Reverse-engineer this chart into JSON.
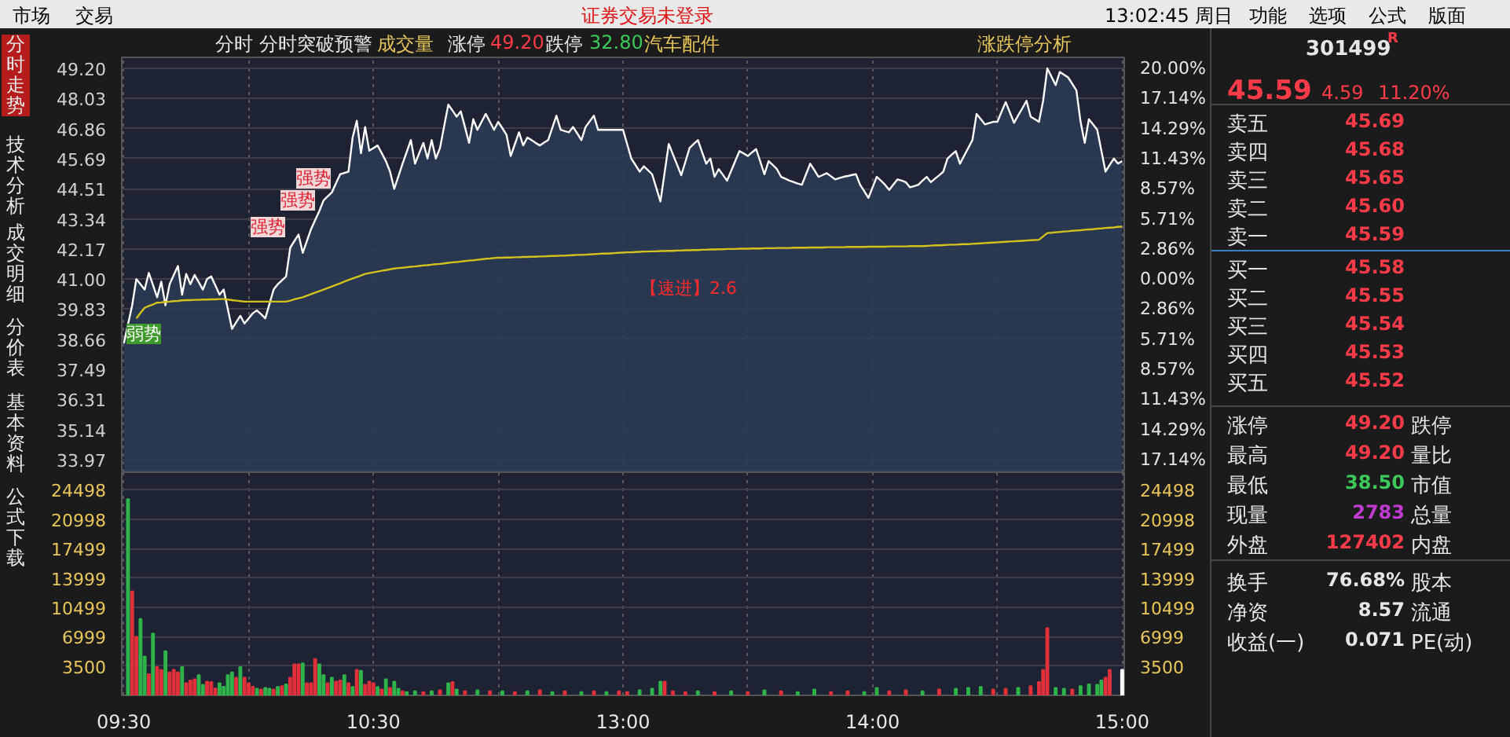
{
  "chart_data": [
    {
      "type": "line",
      "tick_labels": "y",
      "grid": true,
      "marker": "none",
      "line_style": "solid",
      "annotations": [
        "分时",
        "分时突破预警",
        "成交量",
        "涨停",
        "49.20",
        "跌停",
        "32.80",
        "汽车配件",
        "涨跌停分析",
        "弱势",
        "强势",
        "强势",
        "强势",
        "【速进】2.6",
        "市场",
        "交易",
        "证券交易未登录",
        "13:02:45 周日",
        "功能",
        "选项",
        "公式",
        "版面",
        "分时走势",
        "技术分析",
        "成交明细",
        "分价表",
        "基本资料",
        "公式下载",
        "301499",
        "R",
        "45.59",
        "4.59",
        "11.20%",
        "卖五",
        "45.69",
        "卖四",
        "45.68",
        "卖三",
        "45.65",
        "卖二",
        "45.60",
        "卖一",
        "45.59",
        "买一",
        "45.58",
        "买二",
        "45.55",
        "买三",
        "45.54",
        "买四",
        "45.53",
        "买五",
        "45.52",
        "涨停",
        "49.20",
        "跌停",
        "最高",
        "49.20",
        "量比",
        "最低",
        "38.50",
        "市值",
        "现量",
        "2783",
        "总量",
        "外盘",
        "127402",
        "内盘",
        "换手",
        "76.68%",
        "股本",
        "净资",
        "8.57",
        "流通",
        "收益(一)",
        "0.071",
        "PE(动)"
      ],
      "categories": [
        null,
        null,
        null,
        null,
        null,
        null,
        null,
        null,
        null,
        null,
        null,
        null,
        null,
        null,
        null,
        null,
        null,
        null,
        null,
        null,
        null,
        null,
        null,
        null,
        null,
        null,
        null,
        null,
        null,
        null,
        null,
        null,
        null,
        null,
        null,
        null,
        null,
        null,
        null,
        null,
        null,
        null,
        null,
        null,
        null,
        null,
        null,
        null,
        null,
        null,
        null,
        null,
        null,
        null,
        null,
        null,
        null,
        null,
        null,
        null,
        null,
        null,
        null,
        null,
        null,
        null,
        null,
        null,
        null,
        null,
        null,
        null,
        null,
        null,
        null,
        null,
        null,
        null,
        null,
        null,
        null,
        null,
        null,
        null,
        null,
        null,
        null,
        null,
        null,
        null,
        null,
        null,
        null,
        null,
        null,
        null,
        null,
        null,
        null,
        null,
        null,
        null,
        null,
        null,
        null,
        null,
        null,
        null,
        null,
        null,
        null,
        null,
        null,
        null,
        null,
        null,
        null,
        null,
        null,
        null,
        null,
        null,
        null,
        null,
        null,
        null,
        null,
        null,
        null,
        null,
        null,
        null,
        null,
        null,
        null,
        null,
        null,
        null,
        null,
        null,
        null,
        null,
        null,
        null,
        null,
        null,
        null,
        null,
        null,
        null,
        null,
        null,
        null,
        null,
        null,
        null,
        null,
        null,
        null,
        null,
        null,
        null,
        null,
        null,
        null,
        null,
        null,
        null,
        null,
        null,
        null,
        null,
        null,
        null,
        null,
        null,
        null,
        null,
        null,
        null,
        null,
        null,
        null,
        null,
        null,
        null,
        null,
        null,
        null,
        null,
        null,
        null,
        null,
        null,
        null,
        null,
        null,
        null,
        null,
        null,
        null,
        null,
        null,
        null,
        null,
        null,
        null,
        null,
        null,
        null,
        null,
        null,
        null,
        null,
        null,
        null,
        null,
        null,
        null,
        null,
        null,
        null,
        null,
        null,
        null,
        null,
        null,
        null,
        null,
        null,
        null,
        null,
        null,
        null,
        null,
        null,
        null,
        null,
        null,
        null,
        null
      ],
      "ylim": [
        33.48,
        49.63
      ],
      "yticks": [
        {
          "value": 49.2,
          "label": "49.20"
        },
        48.03,
        46.86,
        45.69,
        44.51,
        43.34,
        42.17,
        {
          "value": 41.0,
          "label": "41.00"
        },
        39.83,
        38.66,
        37.49,
        36.31,
        35.14,
        33.97
      ],
      "y2lim": [
        -18.34,
        21.05
      ],
      "y2ticks": [
        {
          "value": 20,
          "label": "20.00%"
        },
        {
          "value": 17.14,
          "label": "17.14%"
        },
        {
          "value": 14.29,
          "label": "14.29%"
        },
        {
          "value": 11.43,
          "label": "11.43%"
        },
        {
          "value": 8.57,
          "label": "8.57%"
        },
        {
          "value": 5.71,
          "label": "5.71%"
        },
        {
          "value": 2.86,
          "label": "2.86%"
        },
        {
          "value": 0,
          "label": "0.00%"
        },
        {
          "value": -2.86,
          "label": "2.86%"
        },
        {
          "value": -5.71,
          "label": "5.71%"
        },
        {
          "value": -8.57,
          "label": "8.57%"
        },
        {
          "value": -11.43,
          "label": "11.43%"
        },
        {
          "value": -14.29,
          "label": "14.29%"
        },
        {
          "value": -17.14,
          "label": "17.14%"
        }
      ],
      "series": [
        {
          "type": "area",
          "color": "#ffffff",
          "values": [
            38.5,
            39.24,
            39.98,
            41.0,
            40.8,
            40.59,
            41.24,
            40.77,
            40.29,
            40.9,
            39.98,
            40.8,
            41.16,
            41.51,
            40.39,
            41.2,
            40.8,
            41.16,
            40.88,
            40.59,
            41.0,
            41.1,
            40.75,
            40.39,
            40.59,
            39.83,
            39.06,
            39.32,
            39.57,
            39.27,
            39.47,
            39.67,
            39.78,
            39.63,
            39.47,
            40.03,
            40.59,
            40.8,
            40.95,
            41.1,
            42.22,
            42.48,
            42.73,
            42.02,
            42.48,
            42.94,
            43.3,
            43.65,
            44.06,
            44.22,
            44.37,
            44.73,
            45.08,
            45.13,
            45.18,
            46.51,
            47.16,
            45.9,
            46.92,
            46.0,
            46.1,
            46.2,
            45.9,
            45.59,
            45.18,
            44.51,
            45.0,
            45.49,
            45.95,
            46.41,
            45.49,
            45.9,
            46.3,
            45.69,
            46.41,
            45.69,
            46.1,
            46.95,
            47.79,
            47.56,
            47.32,
            47.53,
            46.92,
            46.3,
            47.22,
            46.81,
            47.12,
            47.43,
            47.12,
            46.81,
            47.12,
            46.87,
            46.61,
            45.79,
            46.25,
            46.71,
            46.2,
            46.51,
            46.41,
            46.3,
            46.2,
            46.31,
            46.41,
            46.89,
            47.36,
            46.81,
            46.76,
            46.71,
            46.92,
            46.67,
            46.41,
            46.92,
            47.14,
            47.36,
            46.81,
            46.81,
            46.81,
            46.81,
            46.81,
            46.81,
            46.81,
            46.25,
            45.69,
            45.44,
            45.18,
            45.39,
            45.24,
            45.08,
            44.55,
            44.02,
            45.14,
            46.26,
            45.85,
            45.45,
            45.04,
            45.57,
            46.1,
            46.26,
            46.41,
            45.95,
            45.49,
            45.69,
            44.98,
            45.28,
            45.06,
            44.83,
            45.21,
            45.6,
            45.98,
            45.89,
            45.79,
            45.93,
            46.06,
            45.57,
            45.08,
            45.59,
            45.44,
            45.28,
            44.98,
            44.91,
            44.83,
            44.78,
            44.72,
            44.67,
            45.08,
            45.49,
            45.24,
            44.98,
            45.05,
            45.12,
            45.0,
            44.88,
            44.93,
            44.98,
            45.01,
            45.05,
            45.08,
            44.67,
            44.42,
            44.16,
            44.57,
            44.98,
            44.83,
            44.67,
            44.47,
            44.68,
            44.88,
            44.83,
            44.77,
            44.57,
            44.62,
            44.67,
            44.83,
            44.98,
            44.77,
            44.91,
            45.04,
            45.18,
            45.69,
            45.84,
            45.98,
            45.49,
            45.8,
            46.1,
            46.41,
            47.43,
            47.23,
            47.02,
            47.07,
            47.12,
            47.12,
            47.51,
            47.89,
            47.49,
            47.08,
            47.37,
            47.65,
            47.94,
            47.32,
            47.22,
            47.12,
            47.94,
            49.2,
            48.88,
            48.55,
            49.06,
            48.96,
            48.85,
            48.6,
            48.34,
            47.12,
            46.3,
            47.22,
            47.02,
            46.81,
            46.0,
            45.18,
            45.44,
            45.69,
            45.49,
            45.59
          ]
        },
        {
          "type": "line",
          "color": "#d4c21c",
          "values": [
            null,
            null,
            null,
            39.47,
            39.68,
            39.88,
            39.95,
            40.01,
            40.08,
            40.09,
            40.11,
            40.12,
            40.14,
            40.15,
            40.17,
            40.18,
            40.18,
            40.19,
            40.19,
            40.2,
            40.2,
            40.21,
            40.21,
            40.22,
            40.22,
            40.2,
            40.18,
            40.16,
            40.14,
            40.12,
            40.12,
            40.12,
            40.12,
            40.12,
            40.12,
            40.12,
            40.12,
            40.12,
            40.12,
            40.12,
            40.16,
            40.21,
            40.25,
            40.29,
            40.35,
            40.41,
            40.47,
            40.53,
            40.59,
            40.65,
            40.71,
            40.77,
            40.83,
            40.9,
            40.96,
            41.02,
            41.08,
            41.14,
            41.2,
            41.23,
            41.26,
            41.29,
            41.32,
            41.35,
            41.38,
            41.41,
            41.43,
            41.44,
            41.46,
            41.48,
            41.49,
            41.51,
            41.53,
            41.54,
            41.56,
            41.58,
            41.59,
            41.61,
            41.63,
            41.65,
            41.66,
            41.68,
            41.7,
            41.72,
            41.73,
            41.75,
            41.77,
            41.79,
            41.8,
            41.82,
            41.83,
            41.83,
            41.84,
            41.84,
            41.85,
            41.85,
            41.86,
            41.86,
            41.87,
            41.87,
            41.88,
            41.88,
            41.89,
            41.9,
            41.9,
            41.91,
            41.91,
            41.92,
            41.93,
            41.94,
            41.94,
            41.95,
            41.96,
            41.97,
            41.98,
            41.99,
            41.99,
            42.0,
            42.01,
            42.02,
            42.03,
            42.04,
            42.04,
            42.05,
            42.06,
            42.07,
            42.07,
            42.08,
            42.08,
            42.09,
            42.09,
            42.1,
            42.1,
            42.11,
            42.11,
            42.12,
            42.12,
            42.13,
            42.13,
            42.14,
            42.14,
            42.15,
            42.15,
            42.16,
            42.16,
            42.17,
            42.17,
            42.17,
            42.18,
            42.18,
            42.18,
            42.19,
            42.19,
            42.19,
            42.2,
            42.2,
            42.2,
            42.21,
            42.21,
            42.21,
            42.21,
            42.22,
            42.22,
            42.22,
            42.22,
            42.23,
            42.23,
            42.23,
            42.23,
            42.24,
            42.24,
            42.24,
            42.24,
            42.24,
            42.25,
            42.25,
            42.25,
            42.25,
            42.25,
            42.26,
            42.26,
            42.26,
            42.26,
            42.26,
            42.27,
            42.27,
            42.27,
            42.27,
            42.27,
            42.28,
            42.28,
            42.28,
            42.28,
            42.29,
            42.3,
            42.31,
            42.31,
            42.32,
            42.33,
            42.34,
            42.34,
            42.35,
            42.36,
            42.36,
            42.37,
            42.38,
            42.39,
            42.4,
            42.41,
            42.42,
            42.43,
            42.44,
            42.45,
            42.46,
            42.47,
            42.48,
            42.49,
            42.5,
            42.51,
            42.52,
            42.53,
            42.66,
            42.79,
            42.8,
            42.82,
            42.83,
            42.85,
            42.86,
            42.88,
            42.89,
            42.9,
            42.92,
            42.93,
            42.94,
            42.96,
            42.97,
            42.99,
            43.0,
            43.01,
            43.03,
            43.04
          ]
        }
      ]
    },
    {
      "type": "bar",
      "grid": true,
      "categories": [
        "09:30",
        null,
        null,
        null,
        null,
        null,
        null,
        null,
        null,
        null,
        null,
        null,
        null,
        null,
        null,
        null,
        null,
        null,
        null,
        null,
        null,
        null,
        null,
        null,
        null,
        null,
        null,
        null,
        null,
        null,
        null,
        null,
        null,
        null,
        null,
        null,
        null,
        null,
        null,
        null,
        null,
        null,
        null,
        null,
        null,
        null,
        null,
        null,
        null,
        null,
        null,
        null,
        null,
        null,
        null,
        null,
        null,
        null,
        null,
        null,
        "10:30",
        null,
        null,
        null,
        null,
        null,
        null,
        null,
        null,
        null,
        null,
        null,
        null,
        null,
        null,
        null,
        null,
        null,
        null,
        null,
        null,
        null,
        null,
        null,
        null,
        null,
        null,
        null,
        null,
        null,
        null,
        null,
        null,
        null,
        null,
        null,
        null,
        null,
        null,
        null,
        null,
        null,
        null,
        null,
        null,
        null,
        null,
        null,
        null,
        null,
        null,
        null,
        null,
        null,
        null,
        null,
        null,
        null,
        null,
        null,
        "13:00",
        null,
        null,
        null,
        null,
        null,
        null,
        null,
        null,
        null,
        null,
        null,
        null,
        null,
        null,
        null,
        null,
        null,
        null,
        null,
        null,
        null,
        null,
        null,
        null,
        null,
        null,
        null,
        null,
        null,
        null,
        null,
        null,
        null,
        null,
        null,
        null,
        null,
        null,
        null,
        null,
        null,
        null,
        null,
        null,
        null,
        null,
        null,
        null,
        null,
        null,
        null,
        null,
        null,
        null,
        null,
        null,
        null,
        null,
        null,
        "14:00",
        null,
        null,
        null,
        null,
        null,
        null,
        null,
        null,
        null,
        null,
        null,
        null,
        null,
        null,
        null,
        null,
        null,
        null,
        null,
        null,
        null,
        null,
        null,
        null,
        null,
        null,
        null,
        null,
        null,
        null,
        null,
        null,
        null,
        null,
        null,
        null,
        null,
        null,
        null,
        null,
        null,
        null,
        null,
        null,
        null,
        null,
        null,
        null,
        null,
        null,
        null,
        null,
        null,
        null,
        null,
        null,
        null,
        null,
        null,
        "15:00"
      ],
      "ylim": [
        0,
        26600
      ],
      "yticks": [
        3500,
        6999,
        10499,
        13999,
        17499,
        20998,
        24498
      ],
      "y2lim": [
        0,
        26600
      ],
      "y2ticks": [
        3500,
        6999,
        10499,
        13999,
        17499,
        20998,
        24498
      ],
      "values": [
        null,
        23400,
        12400,
        7000,
        9100,
        4640,
        2540,
        7380,
        3370,
        3050,
        5280,
        2730,
        3050,
        2730,
        3370,
        1460,
        1780,
        1910,
        2420,
        1270,
        1650,
        1590,
        830,
        1460,
        1020,
        2420,
        2730,
        2100,
        3370,
        2100,
        1460,
        1020,
        800,
        700,
        900,
        800,
        700,
        1000,
        1100,
        1300,
        2100,
        3690,
        3690,
        3820,
        1460,
        1460,
        4330,
        3690,
        2420,
        1460,
        2100,
        1650,
        1780,
        2420,
        1460,
        1000,
        3050,
        2930,
        1270,
        1650,
        1460,
        1000,
        700,
        1910,
        900,
        1650,
        800,
        500,
        400,
        null,
        500,
        null,
        400,
        null,
        500,
        null,
        600,
        null,
        1460,
        1590,
        700,
        null,
        500,
        null,
        null,
        600,
        null,
        null,
        500,
        null,
        null,
        500,
        null,
        null,
        400,
        null,
        null,
        500,
        null,
        null,
        600,
        null,
        null,
        400,
        null,
        null,
        500,
        null,
        null,
        null,
        400,
        null,
        null,
        500,
        null,
        null,
        400,
        null,
        null,
        500,
        null,
        400,
        null,
        null,
        600,
        null,
        null,
        800,
        null,
        1650,
        1650,
        null,
        500,
        null,
        null,
        400,
        null,
        null,
        500,
        null,
        null,
        null,
        400,
        null,
        null,
        null,
        500,
        null,
        null,
        null,
        400,
        null,
        null,
        null,
        600,
        null,
        null,
        null,
        500,
        null,
        null,
        null,
        400,
        null,
        null,
        null,
        700,
        null,
        null,
        null,
        400,
        null,
        null,
        null,
        500,
        null,
        null,
        null,
        400,
        null,
        null,
        900,
        null,
        null,
        500,
        null,
        null,
        null,
        600,
        null,
        null,
        null,
        500,
        null,
        null,
        null,
        700,
        null,
        null,
        null,
        800,
        null,
        null,
        900,
        null,
        null,
        1000,
        null,
        null,
        700,
        null,
        null,
        800,
        null,
        null,
        900,
        null,
        null,
        1100,
        null,
        1600,
        3050,
        8010,
        null,
        900,
        null,
        800,
        null,
        700,
        null,
        1100,
        null,
        1300,
        null,
        1270,
        1780,
        2100,
        3050,
        null,
        null,
        3050
      ],
      "colors": [
        null,
        "#2fb34a",
        "#e0303c",
        "#e0303c",
        "#2fb34a",
        "#2fb34a",
        "#e0303c",
        "#2fb34a",
        "#e0303c",
        "#e0303c",
        "#2fb34a",
        "#e0303c",
        "#e0303c",
        "#e0303c",
        "#2fb34a",
        "#e0303c",
        "#e0303c",
        "#e0303c",
        "#2fb34a",
        "#2fb34a",
        "#e0303c",
        "#e0303c",
        "#e0303c",
        "#2fb34a",
        "#2fb34a",
        "#2fb34a",
        "#2fb34a",
        "#e0303c",
        "#2fb34a",
        "#e0303c",
        "#e0303c",
        "#e0303c",
        "#2fb34a",
        "#e0303c",
        "#2fb34a",
        "#2fb34a",
        "#e0303c",
        "#2fb34a",
        "#e0303c",
        "#2fb34a",
        "#e0303c",
        "#e0303c",
        "#e0303c",
        "#2fb34a",
        "#e0303c",
        "#e0303c",
        "#e0303c",
        "#2fb34a",
        "#2fb34a",
        "#e0303c",
        "#2fb34a",
        "#e0303c",
        "#e0303c",
        "#2fb34a",
        "#e0303c",
        "#2fb34a",
        "#e0303c",
        "#2fb34a",
        "#e0303c",
        "#e0303c",
        "#e0303c",
        "#2fb34a",
        "#e0303c",
        "#2fb34a",
        "#e0303c",
        "#2fb34a",
        "#2fb34a",
        "#e0303c",
        "#2fb34a",
        null,
        "#2fb34a",
        null,
        "#e0303c",
        null,
        "#2fb34a",
        null,
        "#e0303c",
        null,
        "#2fb34a",
        "#e0303c",
        "#2fb34a",
        null,
        "#e0303c",
        null,
        null,
        "#2fb34a",
        null,
        null,
        "#e0303c",
        null,
        null,
        "#2fb34a",
        null,
        null,
        "#e0303c",
        null,
        null,
        "#2fb34a",
        null,
        null,
        "#e0303c",
        null,
        null,
        "#2fb34a",
        null,
        null,
        "#e0303c",
        null,
        null,
        null,
        "#2fb34a",
        null,
        null,
        "#e0303c",
        null,
        null,
        "#2fb34a",
        null,
        null,
        "#e0303c",
        null,
        "#e0303c",
        null,
        null,
        "#2fb34a",
        null,
        null,
        "#2fb34a",
        null,
        "#2fb34a",
        "#e0303c",
        null,
        "#e0303c",
        null,
        null,
        "#e0303c",
        null,
        null,
        "#2fb34a",
        null,
        null,
        null,
        "#e0303c",
        null,
        null,
        null,
        "#2fb34a",
        null,
        null,
        null,
        "#e0303c",
        null,
        null,
        null,
        "#2fb34a",
        null,
        null,
        null,
        "#e0303c",
        null,
        null,
        null,
        "#2fb34a",
        null,
        null,
        null,
        "#2fb34a",
        null,
        null,
        null,
        "#e0303c",
        null,
        null,
        null,
        "#e0303c",
        null,
        null,
        null,
        "#2fb34a",
        null,
        null,
        "#2fb34a",
        null,
        null,
        "#e0303c",
        null,
        null,
        null,
        "#e0303c",
        null,
        null,
        null,
        "#2fb34a",
        null,
        null,
        null,
        "#e0303c",
        null,
        null,
        null,
        "#2fb34a",
        null,
        null,
        "#2fb34a",
        null,
        null,
        "#2fb34a",
        null,
        null,
        "#e0303c",
        null,
        null,
        "#e0303c",
        null,
        null,
        "#2fb34a",
        null,
        null,
        "#e0303c",
        null,
        "#e0303c",
        "#e0303c",
        "#e0303c",
        null,
        "#2fb34a",
        null,
        "#2fb34a",
        null,
        "#e0303c",
        null,
        "#2fb34a",
        null,
        "#2fb34a",
        null,
        "#2fb34a",
        "#2fb34a",
        "#e0303c",
        "#e0303c",
        null,
        null,
        "#ffffff"
      ]
    }
  ]
}
